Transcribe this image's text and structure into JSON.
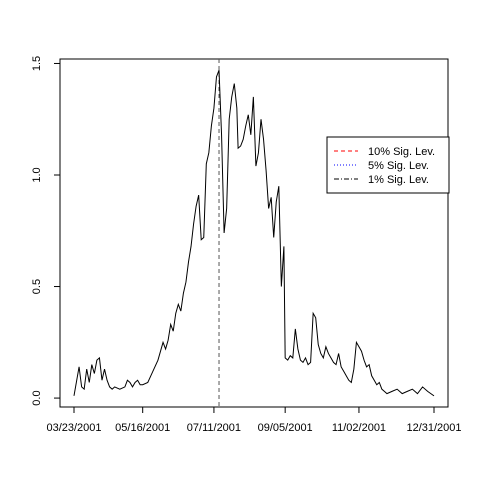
{
  "chart_data": {
    "type": "line",
    "title": "",
    "xlabel": "",
    "ylabel": "",
    "x_tick_labels": [
      "03/23/2001",
      "05/16/2001",
      "07/11/2001",
      "09/05/2001",
      "11/02/2001",
      "12/31/2001"
    ],
    "x_tick_index": [
      0,
      54,
      110,
      166,
      224,
      283
    ],
    "y_ticks": [
      0.0,
      0.5,
      1.0,
      1.5
    ],
    "y_tick_labels": [
      "0.0",
      "0.5",
      "1.0",
      "1.5"
    ],
    "ylim": [
      -0.04,
      1.52
    ],
    "xlim_index": [
      -11,
      294
    ],
    "grid": false,
    "series": [
      {
        "color": "#000000",
        "points": [
          [
            0,
            0.01
          ],
          [
            4,
            0.14
          ],
          [
            6,
            0.05
          ],
          [
            8,
            0.04
          ],
          [
            10,
            0.13
          ],
          [
            12,
            0.07
          ],
          [
            14,
            0.15
          ],
          [
            16,
            0.11
          ],
          [
            18,
            0.17
          ],
          [
            20,
            0.18
          ],
          [
            22,
            0.08
          ],
          [
            24,
            0.13
          ],
          [
            26,
            0.08
          ],
          [
            28,
            0.05
          ],
          [
            30,
            0.04
          ],
          [
            32,
            0.05
          ],
          [
            36,
            0.04
          ],
          [
            40,
            0.05
          ],
          [
            42,
            0.08
          ],
          [
            44,
            0.07
          ],
          [
            46,
            0.05
          ],
          [
            48,
            0.07
          ],
          [
            50,
            0.08
          ],
          [
            52,
            0.06
          ],
          [
            54,
            0.06
          ],
          [
            58,
            0.07
          ],
          [
            62,
            0.12
          ],
          [
            66,
            0.17
          ],
          [
            70,
            0.25
          ],
          [
            72,
            0.22
          ],
          [
            74,
            0.26
          ],
          [
            76,
            0.33
          ],
          [
            78,
            0.3
          ],
          [
            80,
            0.38
          ],
          [
            82,
            0.42
          ],
          [
            84,
            0.39
          ],
          [
            86,
            0.47
          ],
          [
            88,
            0.52
          ],
          [
            90,
            0.61
          ],
          [
            92,
            0.68
          ],
          [
            94,
            0.78
          ],
          [
            96,
            0.86
          ],
          [
            98,
            0.91
          ],
          [
            100,
            0.71
          ],
          [
            102,
            0.72
          ],
          [
            104,
            1.05
          ],
          [
            106,
            1.1
          ],
          [
            108,
            1.22
          ],
          [
            110,
            1.3
          ],
          [
            112,
            1.44
          ],
          [
            114,
            1.47
          ],
          [
            116,
            1.18
          ],
          [
            118,
            0.74
          ],
          [
            120,
            0.85
          ],
          [
            122,
            1.25
          ],
          [
            124,
            1.35
          ],
          [
            126,
            1.41
          ],
          [
            128,
            1.3
          ],
          [
            129,
            1.12
          ],
          [
            131,
            1.13
          ],
          [
            133,
            1.16
          ],
          [
            135,
            1.22
          ],
          [
            137,
            1.27
          ],
          [
            139,
            1.18
          ],
          [
            141,
            1.35
          ],
          [
            143,
            1.04
          ],
          [
            145,
            1.1
          ],
          [
            147,
            1.25
          ],
          [
            149,
            1.16
          ],
          [
            151,
            1.02
          ],
          [
            153,
            0.85
          ],
          [
            155,
            0.9
          ],
          [
            157,
            0.72
          ],
          [
            159,
            0.88
          ],
          [
            161,
            0.95
          ],
          [
            163,
            0.5
          ],
          [
            165,
            0.68
          ],
          [
            166,
            0.18
          ],
          [
            168,
            0.17
          ],
          [
            170,
            0.19
          ],
          [
            172,
            0.18
          ],
          [
            174,
            0.31
          ],
          [
            176,
            0.22
          ],
          [
            178,
            0.17
          ],
          [
            180,
            0.16
          ],
          [
            182,
            0.18
          ],
          [
            184,
            0.15
          ],
          [
            186,
            0.16
          ],
          [
            188,
            0.38
          ],
          [
            190,
            0.36
          ],
          [
            192,
            0.24
          ],
          [
            194,
            0.2
          ],
          [
            196,
            0.18
          ],
          [
            198,
            0.23
          ],
          [
            200,
            0.2
          ],
          [
            202,
            0.18
          ],
          [
            204,
            0.16
          ],
          [
            206,
            0.15
          ],
          [
            208,
            0.2
          ],
          [
            210,
            0.14
          ],
          [
            212,
            0.12
          ],
          [
            214,
            0.1
          ],
          [
            216,
            0.08
          ],
          [
            218,
            0.07
          ],
          [
            220,
            0.13
          ],
          [
            222,
            0.25
          ],
          [
            224,
            0.23
          ],
          [
            226,
            0.21
          ],
          [
            228,
            0.17
          ],
          [
            230,
            0.14
          ],
          [
            232,
            0.15
          ],
          [
            234,
            0.1
          ],
          [
            236,
            0.08
          ],
          [
            238,
            0.06
          ],
          [
            240,
            0.07
          ],
          [
            242,
            0.04
          ],
          [
            244,
            0.03
          ],
          [
            246,
            0.02
          ],
          [
            250,
            0.03
          ],
          [
            254,
            0.04
          ],
          [
            258,
            0.02
          ],
          [
            262,
            0.03
          ],
          [
            266,
            0.04
          ],
          [
            270,
            0.02
          ],
          [
            274,
            0.05
          ],
          [
            278,
            0.03
          ],
          [
            283,
            0.01
          ]
        ]
      }
    ],
    "vertical_lines": [
      {
        "x_index": 114,
        "style": "dashed",
        "color": "#555555"
      }
    ],
    "legend": {
      "placement": "right",
      "entries": [
        {
          "label": "10% Sig. Lev.",
          "color": "#ff0000",
          "style": "dashed"
        },
        {
          "label": "5% Sig. Lev.",
          "color": "#0000ff",
          "style": "dotted"
        },
        {
          "label": "1% Sig. Lev.",
          "color": "#000000",
          "style": "dashdot"
        }
      ]
    }
  }
}
